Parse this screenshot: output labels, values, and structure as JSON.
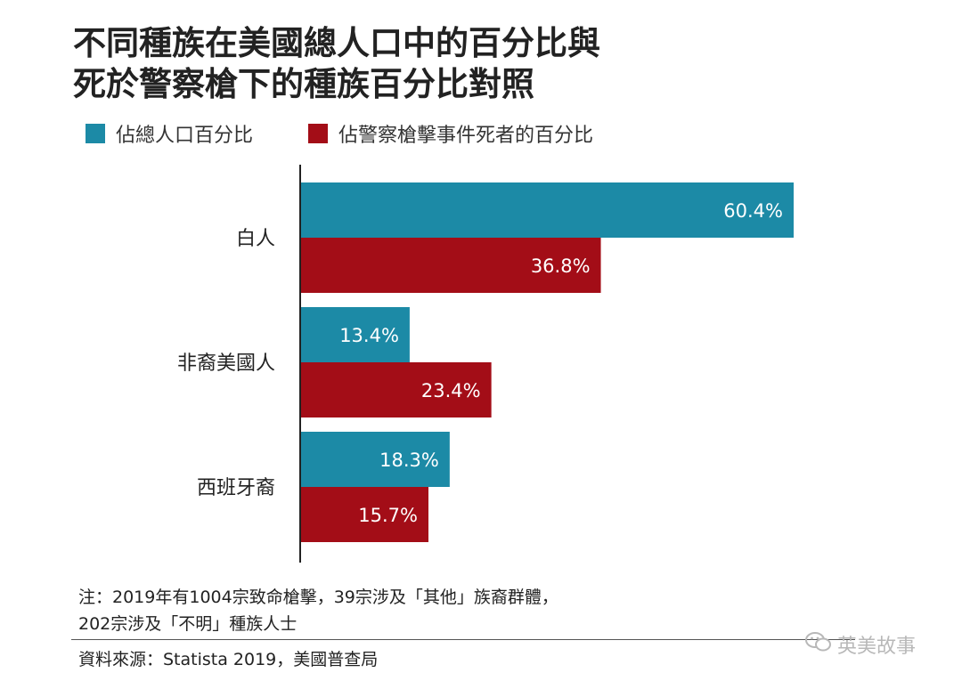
{
  "title_lines": [
    "不同種族在美國總人口中的百分比與",
    "死於警察槍下的種族百分比對照"
  ],
  "colors": {
    "population": "#1c8aa6",
    "deaths": "#a30d17",
    "axis": "#222222",
    "label_text": "#ffffff"
  },
  "chart_data": {
    "type": "bar",
    "orientation": "horizontal",
    "categories": [
      "白人",
      "非裔美國人",
      "西班牙裔"
    ],
    "series": [
      {
        "name": "佔總人口百分比",
        "values": [
          60.4,
          13.4,
          18.3
        ],
        "labels": [
          "60.4%",
          "13.4%",
          "18.3%"
        ]
      },
      {
        "name": "佔警察槍擊事件死者的百分比",
        "values": [
          36.8,
          23.4,
          15.7
        ],
        "labels": [
          "36.8%",
          "23.4%",
          "15.7%"
        ]
      }
    ],
    "xlim": [
      0,
      60.4
    ],
    "grid": false,
    "legend_position": "top-left"
  },
  "note_lines": [
    "注：2019年有1004宗致命槍擊，39宗涉及「其他」族裔群體，",
    "202宗涉及「不明」種族人士"
  ],
  "source": "資料來源：Statista 2019，美國普查局",
  "watermark": {
    "icon": "wechat-icon",
    "text": "英美故事"
  }
}
